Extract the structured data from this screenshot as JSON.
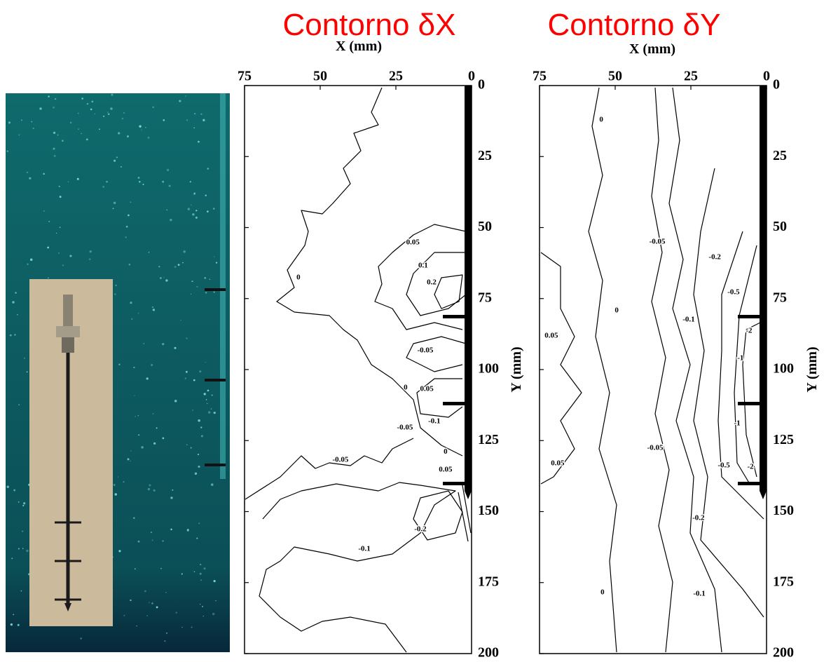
{
  "chart_data": [
    {
      "type": "contour",
      "title": "Contorno δX",
      "title_color": "#ff0000",
      "xlabel": "X (mm)",
      "ylabel": "Y (mm)",
      "xlim": [
        75,
        0
      ],
      "ylim": [
        0,
        200
      ],
      "y_inverted": true,
      "xticks": [
        75,
        50,
        25,
        0
      ],
      "yticks": [
        0,
        25,
        50,
        75,
        100,
        125,
        150,
        175,
        200
      ],
      "contour_labels": [
        {
          "x": 19.4,
          "y": 55.3,
          "level": 0.05
        },
        {
          "x": 16,
          "y": 63.5,
          "level": 0.1
        },
        {
          "x": 13.2,
          "y": 69.4,
          "level": 0.2
        },
        {
          "x": 57.2,
          "y": 67.7,
          "level": 0
        },
        {
          "x": 15.3,
          "y": 93.3,
          "level": -0.05
        },
        {
          "x": 21.8,
          "y": 106.4,
          "level": 0
        },
        {
          "x": 14.8,
          "y": 106.9,
          "level": 0.05
        },
        {
          "x": 12.3,
          "y": 118.3,
          "level": -0.1
        },
        {
          "x": 22,
          "y": 120.5,
          "level": -0.05
        },
        {
          "x": 8.6,
          "y": 129,
          "level": 0
        },
        {
          "x": 43.3,
          "y": 131.9,
          "level": -0.05
        },
        {
          "x": 8.6,
          "y": 135.3,
          "level": 0.05
        },
        {
          "x": 16.9,
          "y": 156.3,
          "level": -0.2
        },
        {
          "x": 35.4,
          "y": 163.2,
          "level": -0.1
        }
      ]
    },
    {
      "type": "contour",
      "title": "Contorno δY",
      "title_color": "#ff0000",
      "xlabel": "X (mm)",
      "ylabel": "Y (mm)",
      "xlim": [
        75,
        0
      ],
      "ylim": [
        0,
        200
      ],
      "y_inverted": true,
      "xticks": [
        75,
        50,
        25,
        0
      ],
      "yticks": [
        0,
        25,
        50,
        75,
        100,
        125,
        150,
        175,
        200
      ],
      "contour_labels": [
        {
          "x": 54.6,
          "y": 12.1,
          "level": 0
        },
        {
          "x": 36.1,
          "y": 55.1,
          "level": -0.05
        },
        {
          "x": 17.1,
          "y": 60.5,
          "level": -0.2
        },
        {
          "x": 10.9,
          "y": 72.8,
          "level": -0.5
        },
        {
          "x": 49.5,
          "y": 79.3,
          "level": 0
        },
        {
          "x": 25.7,
          "y": 82.5,
          "level": -0.1
        },
        {
          "x": 5.8,
          "y": 86.4,
          "level": -2
        },
        {
          "x": 71.1,
          "y": 88.1,
          "level": 0.05
        },
        {
          "x": 8.6,
          "y": 96,
          "level": -1
        },
        {
          "x": 9.7,
          "y": 119,
          "level": -1
        },
        {
          "x": 36.8,
          "y": 127.7,
          "level": -0.05
        },
        {
          "x": 69,
          "y": 133.1,
          "level": 0.05
        },
        {
          "x": 14.1,
          "y": 133.8,
          "level": -0.5
        },
        {
          "x": 5.3,
          "y": 134.3,
          "level": -2
        },
        {
          "x": 22.5,
          "y": 152.3,
          "level": -0.2
        },
        {
          "x": 54.2,
          "y": 178.5,
          "level": 0
        },
        {
          "x": 22.2,
          "y": 179,
          "level": -0.1
        }
      ]
    }
  ]
}
